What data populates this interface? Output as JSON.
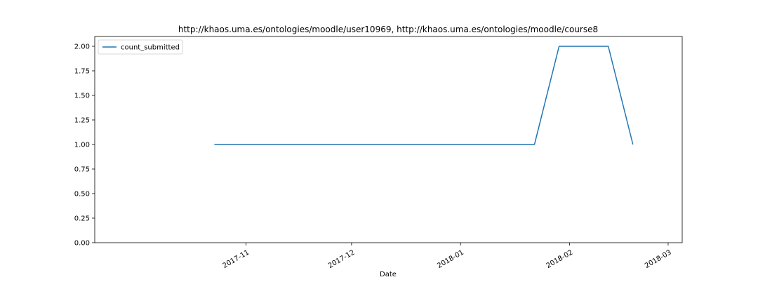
{
  "chart_data": {
    "type": "line",
    "title": "http://khaos.uma.es/ontologies/moodle/user10969, http://khaos.uma.es/ontologies/moodle/course8",
    "xlabel": "Date",
    "ylabel": "",
    "x_axis": "date",
    "xlim": [
      "2017-09-19",
      "2018-03-05"
    ],
    "ylim": [
      0.0,
      2.1
    ],
    "x_ticks": [
      "2017-11-01",
      "2017-12-01",
      "2018-01-01",
      "2018-02-01",
      "2018-03-01"
    ],
    "x_tick_labels": [
      "2017-11",
      "2017-12",
      "2018-01",
      "2018-02",
      "2018-03"
    ],
    "y_ticks": [
      0.0,
      0.25,
      0.5,
      0.75,
      1.0,
      1.25,
      1.5,
      1.75,
      2.0
    ],
    "y_tick_labels": [
      "0.00",
      "0.25",
      "0.50",
      "0.75",
      "1.00",
      "1.25",
      "1.50",
      "1.75",
      "2.00"
    ],
    "grid": false,
    "legend": "top-left",
    "series": [
      {
        "name": "count_submitted",
        "color": "#1f77b4",
        "x": [
          "2017-10-23",
          "2018-01-22",
          "2018-01-29",
          "2018-02-12",
          "2018-02-19"
        ],
        "values": [
          1,
          1,
          2,
          2,
          1
        ]
      }
    ]
  }
}
